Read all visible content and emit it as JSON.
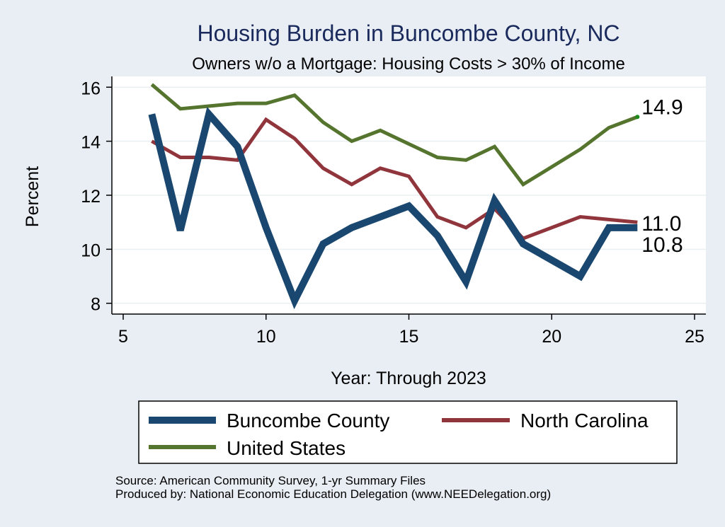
{
  "chart_data": {
    "type": "line",
    "title": "Housing Burden in Buncombe County, NC",
    "subtitle": "Owners w/o a Mortgage: Housing Costs > 30% of Income",
    "xlabel": "Year: Through 2023",
    "ylabel": "Percent",
    "xlim": [
      5,
      25
    ],
    "ylim": [
      7.6,
      16.4
    ],
    "x_ticks": [
      5,
      10,
      15,
      20,
      25
    ],
    "y_ticks": [
      8,
      10,
      12,
      14,
      16
    ],
    "grid": true,
    "legend_position": "bottom",
    "series": [
      {
        "name": "Buncombe County",
        "color": "#1a476f",
        "x": [
          6,
          7,
          8,
          9,
          10,
          11,
          12,
          13,
          14,
          15,
          16,
          17,
          18,
          19,
          21,
          22,
          23
        ],
        "values": [
          15.0,
          10.7,
          15.0,
          13.8,
          10.8,
          8.1,
          10.2,
          10.8,
          11.2,
          11.6,
          10.5,
          8.8,
          11.8,
          10.2,
          9.0,
          10.8,
          10.8
        ],
        "end_label": "10.8"
      },
      {
        "name": "North Carolina",
        "color": "#90353b",
        "x": [
          6,
          7,
          8,
          9,
          10,
          11,
          12,
          13,
          14,
          15,
          16,
          17,
          18,
          19,
          21,
          22,
          23
        ],
        "values": [
          14.0,
          13.4,
          13.4,
          13.3,
          14.8,
          14.1,
          13.0,
          12.4,
          13.0,
          12.7,
          11.2,
          10.8,
          11.5,
          10.4,
          11.2,
          11.1,
          11.0
        ],
        "end_label": "11.0"
      },
      {
        "name": "United States",
        "color": "#55752f",
        "x": [
          6,
          7,
          8,
          9,
          10,
          11,
          12,
          13,
          14,
          15,
          16,
          17,
          18,
          19,
          21,
          22,
          23
        ],
        "values": [
          16.1,
          15.2,
          15.3,
          15.4,
          15.4,
          15.7,
          14.7,
          14.0,
          14.4,
          13.9,
          13.4,
          13.3,
          13.8,
          12.4,
          13.7,
          14.5,
          14.9
        ],
        "end_label": "14.9"
      }
    ],
    "legend_labels": [
      "Buncombe County",
      "North Carolina",
      "United States"
    ]
  },
  "source": {
    "line1": "Source: American Community Survey, 1-yr Summary Files",
    "line2": "Produced by: National Economic Education Delegation (www.NEEDelegation.org)"
  }
}
